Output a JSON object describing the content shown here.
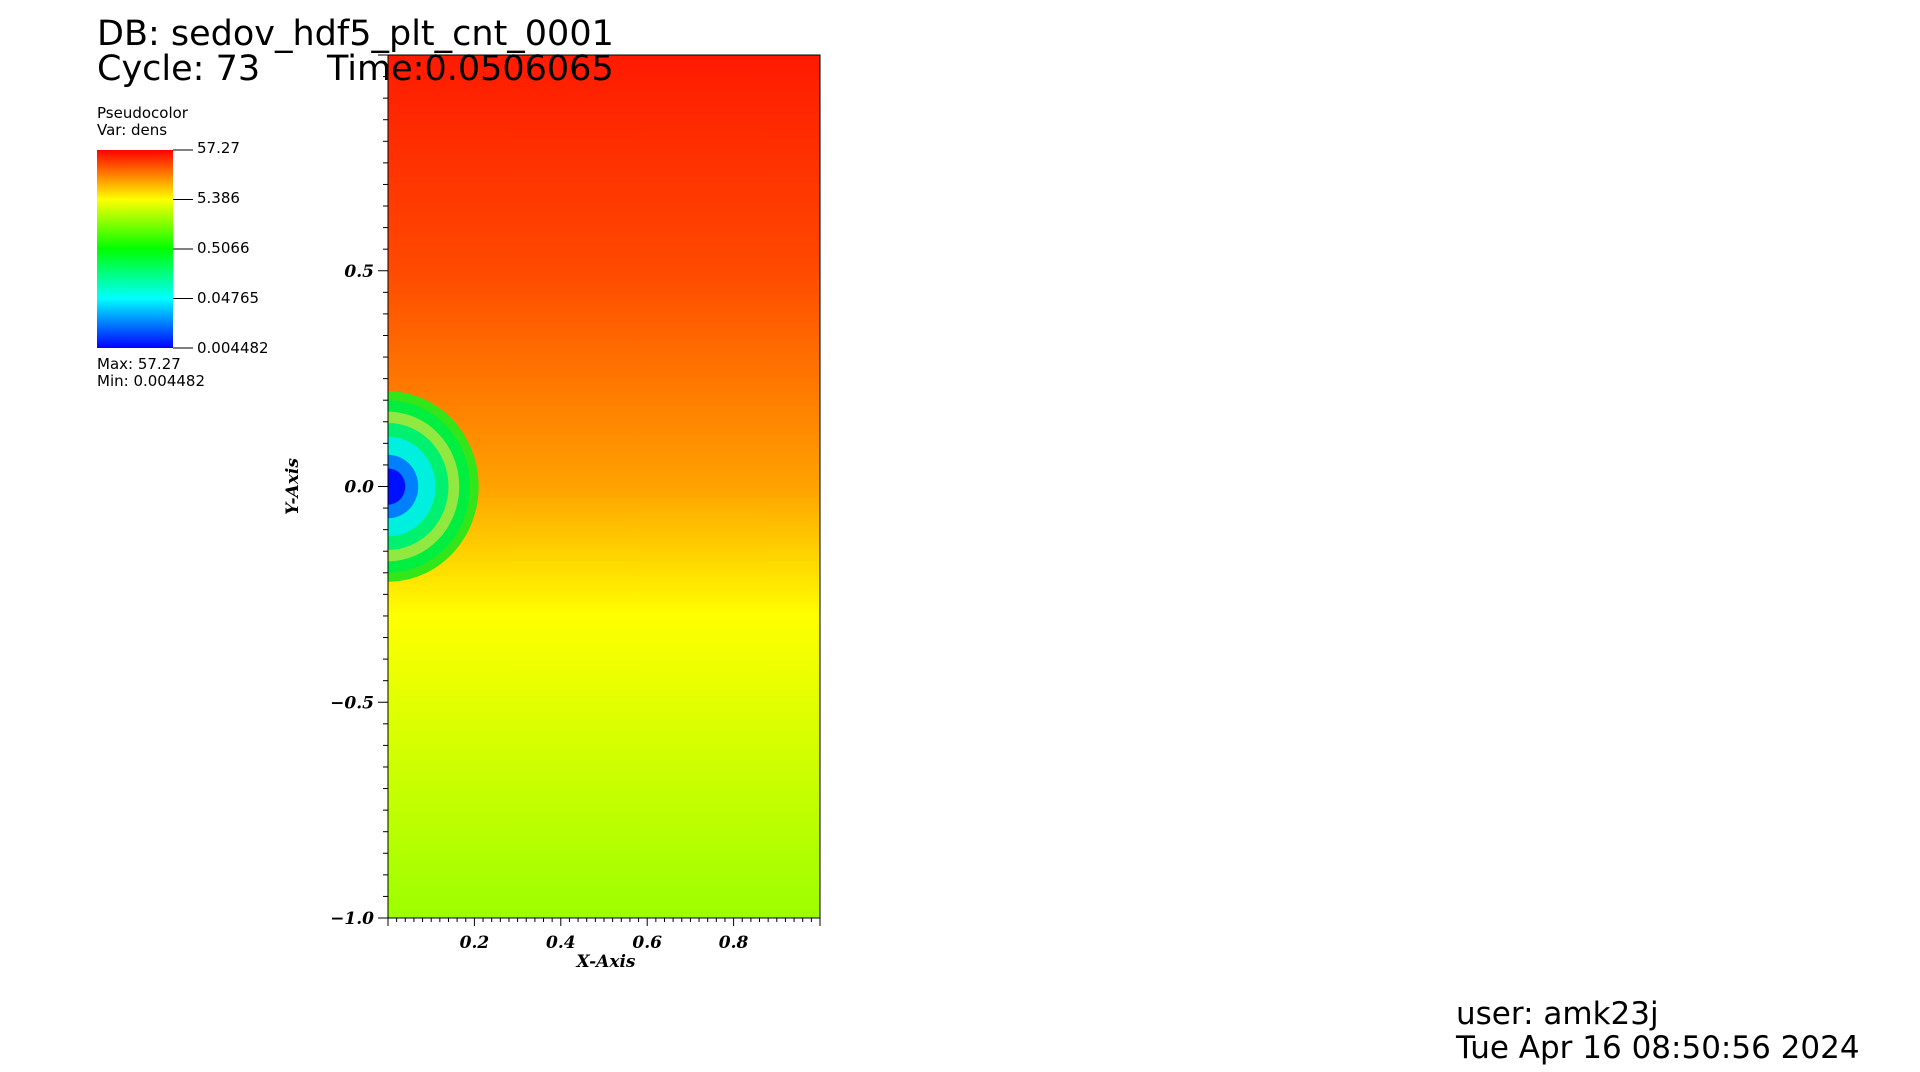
{
  "header": {
    "db_label": "DB: sedov_hdf5_plt_cnt_0001",
    "cycle_label": "Cycle: 73",
    "time_label": "Time:0.0506065"
  },
  "legend": {
    "plot_type": "Pseudocolor",
    "var_label": "Var: dens",
    "ticks": [
      "57.27",
      "5.386",
      "0.5066",
      "0.04765",
      "0.004482"
    ],
    "max_label": "Max:  57.27",
    "min_label": "Min:  0.004482",
    "colormap": [
      "#0000ff",
      "#00ffff",
      "#00ff00",
      "#ffff00",
      "#ff0000"
    ]
  },
  "footer": {
    "user_label": "user: amk23j",
    "date_label": "Tue Apr 16 08:50:56 2024"
  },
  "chart_data": {
    "type": "heatmap",
    "variable": "dens",
    "xlabel": "X-Axis",
    "ylabel": "Y-Axis",
    "xlim": [
      0,
      1
    ],
    "ylim": [
      -1,
      1
    ],
    "xticks": [
      "0.2",
      "0.4",
      "0.6",
      "0.8"
    ],
    "yticks": [
      "0.5",
      "0.0",
      "−0.5",
      "−1.0"
    ],
    "ytick_values": [
      0.5,
      0.0,
      -0.5,
      -1.0
    ],
    "xtick_values": [
      0.2,
      0.4,
      0.6,
      0.8
    ],
    "value_range": [
      0.004482,
      57.27
    ],
    "log_scale": true,
    "background_gradient": [
      {
        "y": 1.0,
        "color": "#ff1a00"
      },
      {
        "y": 0.5,
        "color": "#ff4a00"
      },
      {
        "y": 0.0,
        "color": "#ffa200"
      },
      {
        "y": -0.3,
        "color": "#ffff00"
      },
      {
        "y": -1.0,
        "color": "#9cff00"
      }
    ],
    "blast_wave": {
      "center": [
        0,
        0
      ],
      "radius": 0.21,
      "rings": [
        {
          "r": 0.21,
          "color": "#33e61a"
        },
        {
          "r": 0.19,
          "color": "#00ee40"
        },
        {
          "r": 0.165,
          "color": "#90e840"
        },
        {
          "r": 0.14,
          "color": "#00f070"
        },
        {
          "r": 0.11,
          "color": "#00f0e0"
        },
        {
          "r": 0.07,
          "color": "#0080ff"
        },
        {
          "r": 0.04,
          "color": "#0010ff"
        }
      ]
    }
  }
}
